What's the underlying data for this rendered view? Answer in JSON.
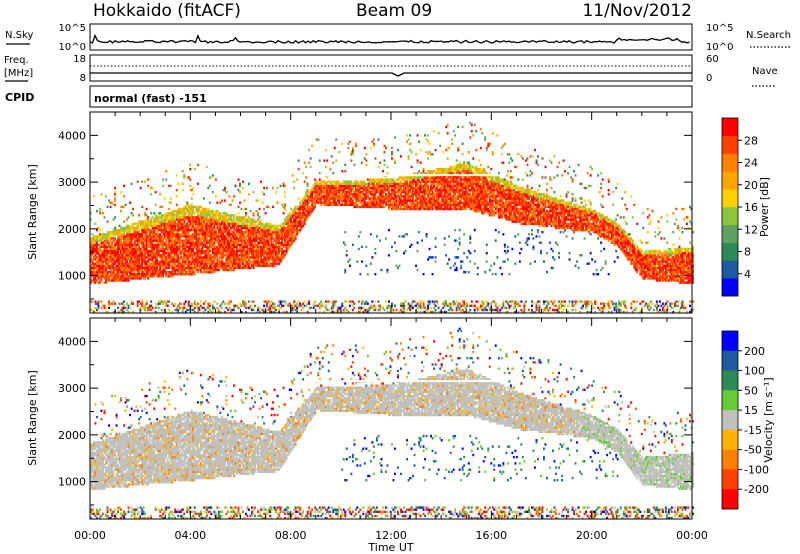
{
  "header": {
    "station": "Hokkaido (fitACF)",
    "beam": "Beam 09",
    "date": "11/Nov/2012"
  },
  "noise_panel": {
    "left_label": "N.Sky",
    "right_label": "N.Search",
    "left_ticks": [
      "10^5",
      "10^0"
    ],
    "right_ticks": [
      "10^5",
      "10^0"
    ]
  },
  "freq_panel": {
    "left_label_1": "Freq.",
    "left_label_2": "[MHz]",
    "right_label": "Nave",
    "left_ticks": [
      "18",
      "8"
    ],
    "right_ticks": [
      "60",
      "0"
    ],
    "cpid_label": "CPID",
    "cpid_text": "normal (fast) -151"
  },
  "colors": {
    "power_scale": [
      "#0000ff",
      "#1e5aa0",
      "#2e8b57",
      "#5fa05f",
      "#8cc63f",
      "#ffd000",
      "#ffa500",
      "#ff7f00",
      "#ff4000",
      "#ff0000"
    ],
    "velocity_scale": [
      "#0000ff",
      "#1e5aa0",
      "#2e8b57",
      "#66cc33",
      "#c0c0bc",
      "#ffb300",
      "#ff8000",
      "#ff4000",
      "#ff0000"
    ],
    "ground_scatter": "#c0c0bc"
  },
  "chart_data": [
    {
      "type": "heatmap",
      "title": "Power",
      "ylabel": "Slant Range [km]",
      "ylim": [
        200,
        4500
      ],
      "yticks": [
        "1000",
        "2000",
        "3000",
        "4000"
      ],
      "xlim": [
        0,
        24
      ],
      "colorbar_label": "Power [dB]",
      "colorbar_ticks": [
        "4",
        "8",
        "12",
        "16",
        "20",
        "24",
        "28"
      ],
      "colorbar_range": [
        0,
        32
      ],
      "features": {
        "main_band_upper_km": [
          [
            0,
            1800
          ],
          [
            4,
            2500
          ],
          [
            7.5,
            2050
          ],
          [
            9,
            3000
          ],
          [
            12,
            3050
          ],
          [
            15,
            3400
          ],
          [
            17,
            2900
          ],
          [
            20,
            2400
          ],
          [
            21,
            2100
          ],
          [
            22,
            1500
          ],
          [
            24,
            1600
          ]
        ],
        "main_band_lower_km": [
          [
            0,
            800
          ],
          [
            4,
            1000
          ],
          [
            7.5,
            1200
          ],
          [
            9,
            2500
          ],
          [
            12,
            2400
          ],
          [
            15,
            2400
          ],
          [
            17,
            2100
          ],
          [
            20,
            1900
          ],
          [
            21,
            1600
          ],
          [
            22,
            900
          ],
          [
            24,
            800
          ]
        ]
      }
    },
    {
      "type": "heatmap",
      "title": "Velocity",
      "ylabel": "Slant Range [km]",
      "ylim": [
        200,
        4500
      ],
      "yticks": [
        "1000",
        "2000",
        "3000",
        "4000"
      ],
      "xlim": [
        0,
        24
      ],
      "xticks": [
        "00:00",
        "04:00",
        "08:00",
        "12:00",
        "16:00",
        "20:00",
        "00:00"
      ],
      "xlabel": "Time UT",
      "colorbar_label": "Velocity [m s⁻¹]",
      "colorbar_ticks": [
        "200",
        "100",
        "50",
        "15",
        "-15",
        "-50",
        "-100",
        "-200"
      ]
    }
  ]
}
